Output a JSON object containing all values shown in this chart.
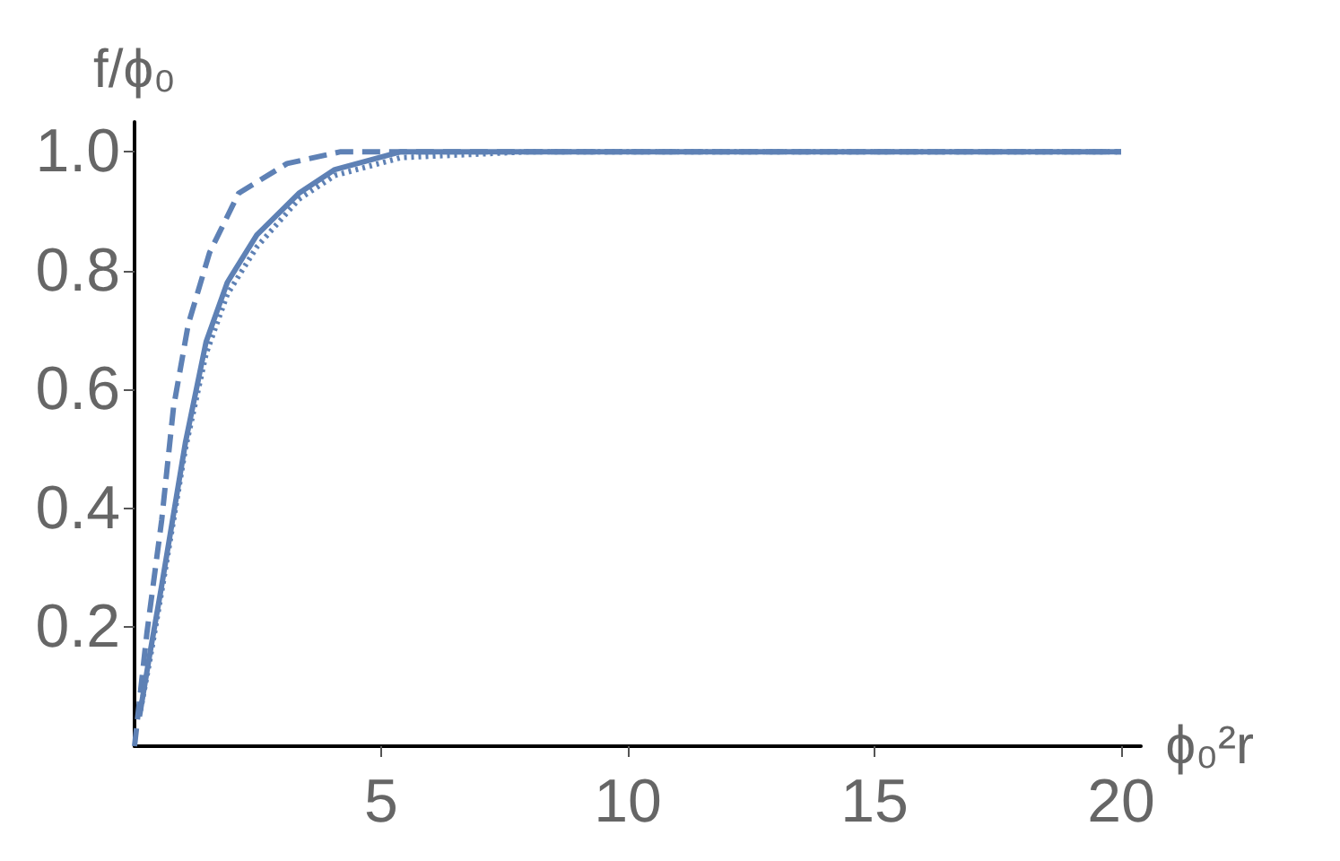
{
  "chart_data": {
    "type": "line",
    "xlabel": "ϕ₀²r",
    "ylabel": "f/ϕ₀",
    "xlim": [
      0,
      20.4
    ],
    "ylim": [
      0,
      1.05
    ],
    "xticks": [
      5,
      10,
      15,
      20
    ],
    "yticks": [
      0.2,
      0.4,
      0.6,
      0.8,
      {
        "value": 1,
        "label": "1.0"
      }
    ],
    "grid": false,
    "marker": "none",
    "series": [
      {
        "color": "#5e81b5",
        "line_style": "dashed",
        "x": [
          0,
          0.25,
          0.55,
          0.79,
          1.09,
          1.52,
          2.11,
          3.09,
          4.18,
          6,
          10,
          20
        ],
        "values": [
          0,
          0.19,
          0.38,
          0.57,
          0.71,
          0.83,
          0.93,
          0.98,
          1.0,
          1.0,
          1.0,
          1.0
        ]
      },
      {
        "color": "#5e81b5",
        "line_style": "solid",
        "x": [
          0.1,
          0.3,
          0.55,
          1.03,
          1.45,
          1.88,
          2.48,
          3.33,
          4.06,
          5.4,
          8,
          20
        ],
        "values": [
          0.05,
          0.15,
          0.27,
          0.51,
          0.68,
          0.78,
          0.86,
          0.93,
          0.97,
          1.0,
          1.0,
          1.0
        ]
      },
      {
        "color": "#5e81b5",
        "line_style": "dotted",
        "x": [
          0.12,
          0.3,
          0.55,
          1.03,
          1.45,
          1.88,
          2.48,
          3.33,
          4.06,
          5.4,
          8,
          20
        ],
        "values": [
          0.06,
          0.14,
          0.26,
          0.5,
          0.66,
          0.76,
          0.84,
          0.92,
          0.96,
          0.99,
          1.0,
          1.0
        ]
      }
    ]
  }
}
